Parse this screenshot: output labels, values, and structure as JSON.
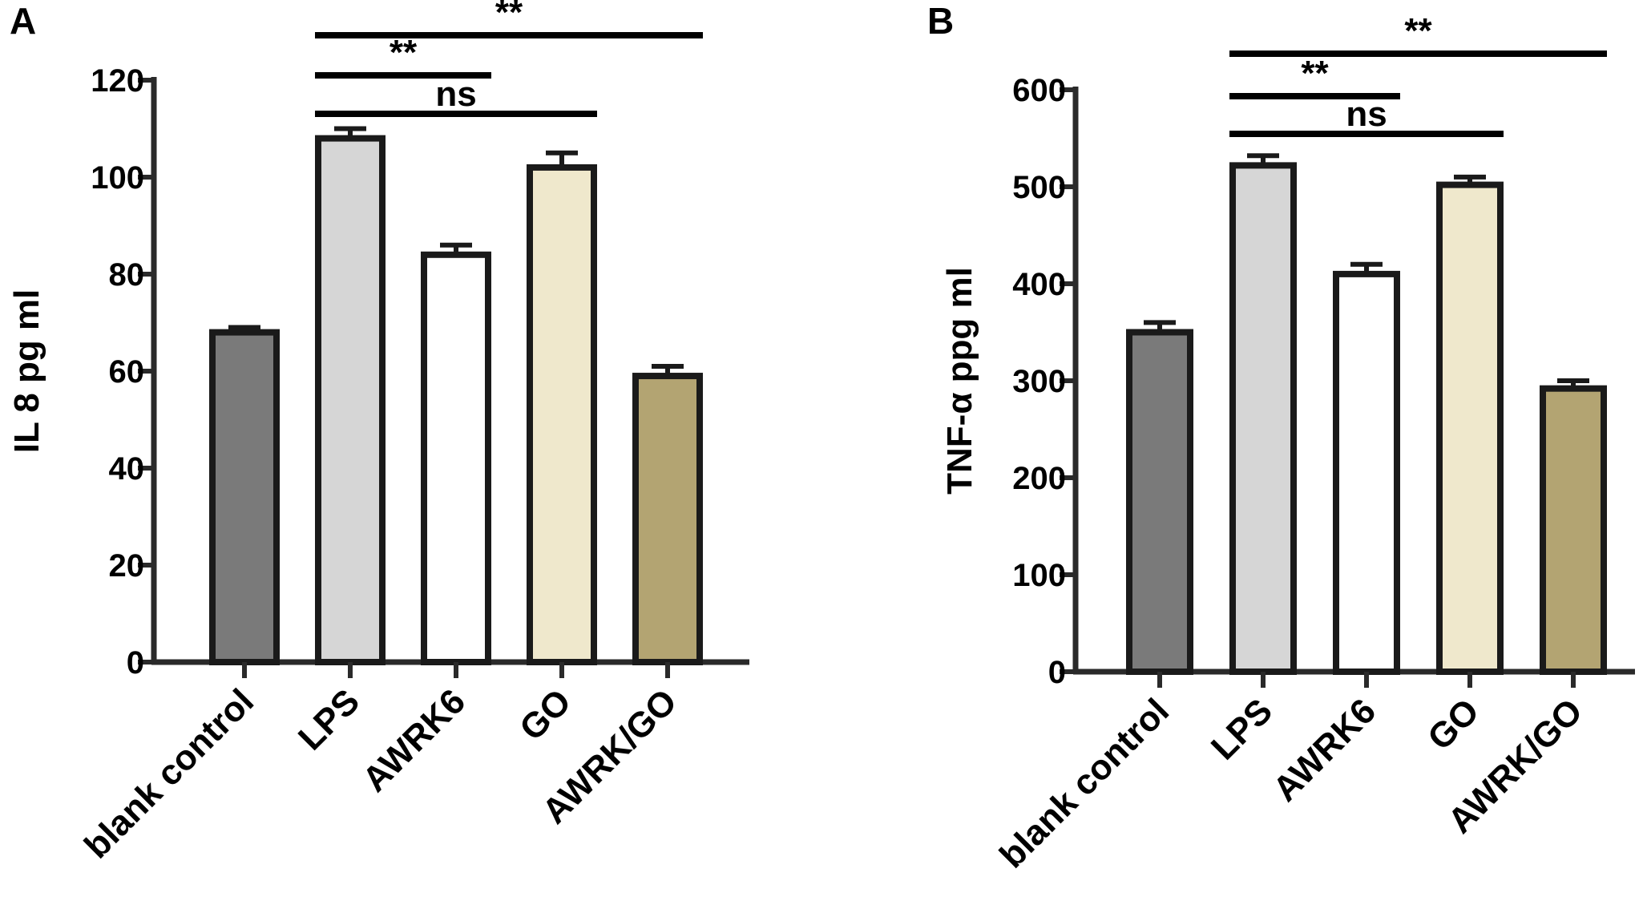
{
  "chart_data": [
    {
      "type": "bar",
      "panel_label": "A",
      "title": "",
      "xlabel": "",
      "ylabel": "IL 8 pg ml",
      "ylim": [
        0,
        120
      ],
      "yticks": [
        0,
        20,
        40,
        60,
        80,
        100,
        120
      ],
      "categories": [
        "blank control",
        "LPS",
        "AWRK6",
        "GO",
        "AWRK/GO"
      ],
      "values": [
        68,
        108,
        84,
        102,
        59
      ],
      "errors": [
        1,
        2,
        2,
        3,
        2
      ],
      "bar_colors": [
        "#7a7a7a",
        "#d6d6d6",
        "#ffffff",
        "#efe8cc",
        "#b3a472"
      ],
      "grid": false,
      "legend": "none",
      "significance": [
        {
          "from": 1,
          "to": 4,
          "label": "**"
        },
        {
          "from": 1,
          "to": 2,
          "label": "**"
        },
        {
          "from": 1,
          "to": 3,
          "label": "ns"
        }
      ]
    },
    {
      "type": "bar",
      "panel_label": "B",
      "title": "",
      "xlabel": "",
      "ylabel": "TNF-α ppg ml",
      "ylim": [
        0,
        600
      ],
      "yticks": [
        0,
        100,
        200,
        300,
        400,
        500,
        600
      ],
      "categories": [
        "blank control",
        "LPS",
        "AWRK6",
        "GO",
        "AWRK/GO"
      ],
      "values": [
        350,
        522,
        410,
        502,
        292
      ],
      "errors": [
        10,
        10,
        10,
        8,
        8
      ],
      "bar_colors": [
        "#7a7a7a",
        "#d6d6d6",
        "#ffffff",
        "#efe8cc",
        "#b3a472"
      ],
      "grid": false,
      "legend": "none",
      "significance": [
        {
          "from": 1,
          "to": 4,
          "label": "**"
        },
        {
          "from": 1,
          "to": 2,
          "label": "**"
        },
        {
          "from": 1,
          "to": 3,
          "label": "ns"
        }
      ]
    }
  ]
}
